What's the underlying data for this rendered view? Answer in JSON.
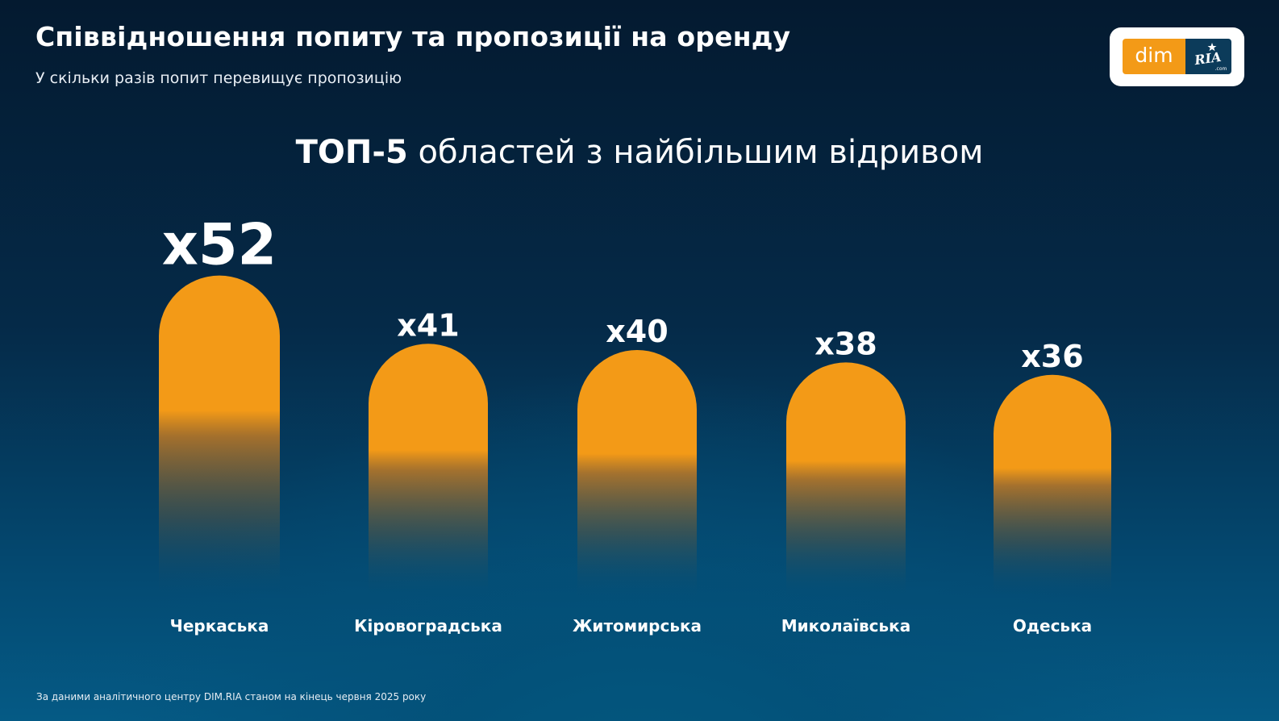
{
  "header": {
    "title": "Співвідношення попиту та пропозиції на оренду",
    "subtitle": "У скільки разів попит перевищує пропозицію"
  },
  "logo": {
    "left_text": "dim",
    "right_text": "RIA",
    "right_subtext": ".com"
  },
  "chart_heading": {
    "bold": "ТОП-5",
    "rest": "областей з найбільшим відривом"
  },
  "footnote": "За даними аналітичного центру DIM.RIA станом на кінець червня 2025 року",
  "colors": {
    "bar": "#f39a17",
    "accent_logo": "#f39a17",
    "logo_dark": "#0c3b5a"
  },
  "chart_data": {
    "type": "bar",
    "categories": [
      "Черкаська",
      "Кіровоградська",
      "Житомирська",
      "Миколаївська",
      "Одеська"
    ],
    "values": [
      52,
      41,
      40,
      38,
      36
    ],
    "value_labels": [
      "x52",
      "x41",
      "x40",
      "x38",
      "x36"
    ],
    "title": "ТОП-5 областей з найбільшим відривом",
    "xlabel": "",
    "ylabel": "",
    "grid": false,
    "legend": "none"
  }
}
